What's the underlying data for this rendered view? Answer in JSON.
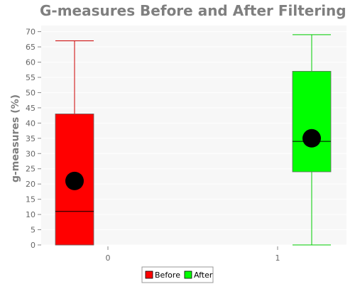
{
  "chart_data": {
    "type": "box",
    "title": "G-measures Before and After Filtering",
    "xlabel": "",
    "ylabel": "g-measures (%)",
    "ylim": [
      0,
      72
    ],
    "yticks": [
      "0",
      "5",
      "10",
      "15",
      "20",
      "25",
      "30",
      "35",
      "40",
      "45",
      "50",
      "55",
      "60",
      "65",
      "70"
    ],
    "categories": [
      "0",
      "1"
    ],
    "grid": true,
    "legend_position": "bottom",
    "series": [
      {
        "name": "Before",
        "category": "0",
        "color": "#ff0000",
        "whisker_color": "#cc0000",
        "min": 0,
        "q1": 0,
        "median": 11,
        "q3": 43,
        "max": 67,
        "mean": 21
      },
      {
        "name": "After",
        "category": "1",
        "color": "#00ff00",
        "whisker_color": "#00cc00",
        "min": 0,
        "q1": 24,
        "median": 34,
        "q3": 57,
        "max": 69,
        "mean": 35
      }
    ]
  }
}
